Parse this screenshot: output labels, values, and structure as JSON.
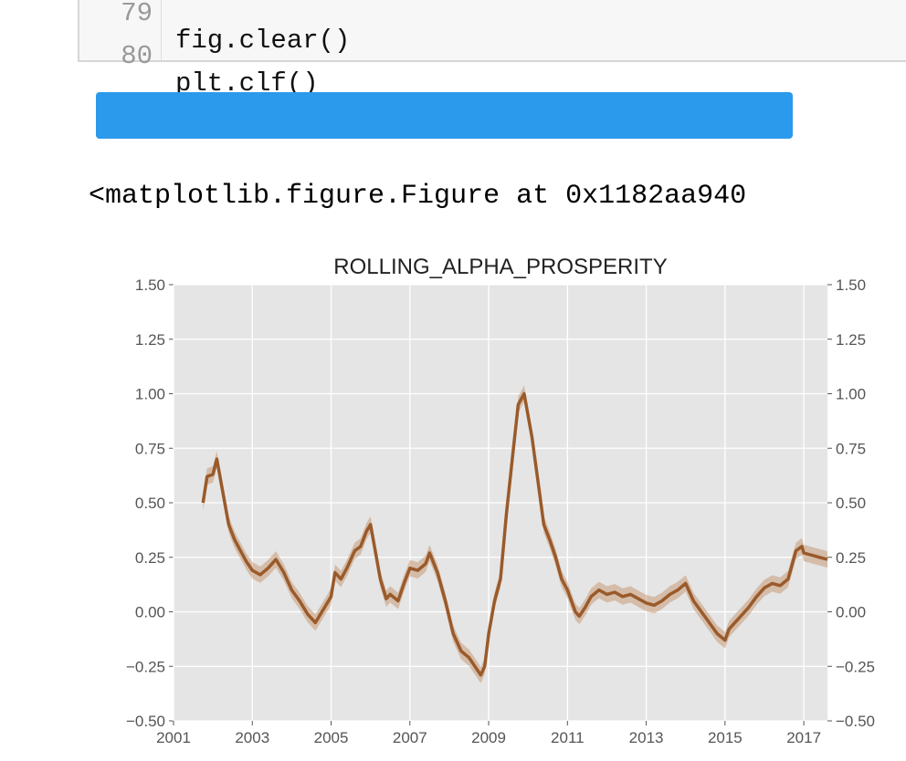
{
  "code_cell": {
    "lines": [
      {
        "number": "79",
        "code": "fig.clear()"
      },
      {
        "number": "80",
        "code": "plt.clf()"
      }
    ]
  },
  "progress": {
    "fraction": 1.0,
    "color": "#2b99ec"
  },
  "output": {
    "text": "<matplotlib.figure.Figure at 0x1182aa940"
  },
  "chart_data": {
    "type": "line",
    "title": "ROLLING_ALPHA_PROSPERITY",
    "xlabel": "",
    "ylabel": "",
    "xlim": [
      2001,
      2017.6
    ],
    "ylim": [
      -0.5,
      1.5
    ],
    "x_ticks": [
      "2001",
      "2003",
      "2005",
      "2007",
      "2009",
      "2011",
      "2013",
      "2015",
      "2017"
    ],
    "y_ticks": [
      "1.50",
      "1.25",
      "1.00",
      "0.75",
      "0.50",
      "0.25",
      "0.00",
      "−0.25",
      "−0.50"
    ],
    "right_axis_ticks": true,
    "grid": true,
    "background": "#e5e5e5",
    "line_color": "#9a5a2a",
    "band_color": "#c69a78",
    "series": [
      {
        "x": [
          2001.75,
          2001.85,
          2002.0,
          2002.1,
          2002.25,
          2002.4,
          2002.55,
          2002.7,
          2002.85,
          2003.0,
          2003.2,
          2003.4,
          2003.6,
          2003.8,
          2004.0,
          2004.2,
          2004.4,
          2004.6,
          2004.8,
          2005.0,
          2005.1,
          2005.25,
          2005.4,
          2005.6,
          2005.75,
          2005.9,
          2006.0,
          2006.1,
          2006.25,
          2006.4,
          2006.5,
          2006.7,
          2006.85,
          2007.0,
          2007.2,
          2007.4,
          2007.5,
          2007.7,
          2007.9,
          2008.1,
          2008.3,
          2008.5,
          2008.65,
          2008.8,
          2008.9,
          2009.0,
          2009.15,
          2009.3,
          2009.45,
          2009.6,
          2009.75,
          2009.9,
          2010.0,
          2010.1,
          2010.25,
          2010.4,
          2010.55,
          2010.7,
          2010.85,
          2011.0,
          2011.1,
          2011.2,
          2011.3,
          2011.45,
          2011.6,
          2011.8,
          2012.0,
          2012.2,
          2012.4,
          2012.6,
          2012.8,
          2013.0,
          2013.2,
          2013.4,
          2013.6,
          2013.8,
          2014.0,
          2014.2,
          2014.4,
          2014.6,
          2014.8,
          2015.0,
          2015.1,
          2015.25,
          2015.4,
          2015.6,
          2015.8,
          2016.0,
          2016.2,
          2016.4,
          2016.6,
          2016.8,
          2016.95,
          2017.0,
          2017.2,
          2017.4,
          2017.6
        ],
        "y": [
          0.5,
          0.62,
          0.63,
          0.7,
          0.55,
          0.4,
          0.33,
          0.28,
          0.23,
          0.19,
          0.17,
          0.2,
          0.24,
          0.18,
          0.1,
          0.05,
          -0.01,
          -0.05,
          0.01,
          0.07,
          0.18,
          0.15,
          0.2,
          0.28,
          0.3,
          0.37,
          0.4,
          0.3,
          0.15,
          0.06,
          0.08,
          0.05,
          0.13,
          0.2,
          0.19,
          0.22,
          0.27,
          0.18,
          0.05,
          -0.1,
          -0.18,
          -0.21,
          -0.25,
          -0.29,
          -0.25,
          -0.1,
          0.05,
          0.15,
          0.45,
          0.7,
          0.95,
          1.0,
          0.9,
          0.8,
          0.6,
          0.4,
          0.33,
          0.25,
          0.15,
          0.1,
          0.05,
          0.0,
          -0.02,
          0.02,
          0.07,
          0.1,
          0.08,
          0.09,
          0.07,
          0.08,
          0.06,
          0.04,
          0.03,
          0.05,
          0.08,
          0.1,
          0.13,
          0.05,
          0.0,
          -0.05,
          -0.1,
          -0.13,
          -0.08,
          -0.05,
          -0.02,
          0.02,
          0.07,
          0.11,
          0.13,
          0.12,
          0.15,
          0.28,
          0.3,
          0.27,
          0.26,
          0.25,
          0.24
        ]
      }
    ]
  }
}
